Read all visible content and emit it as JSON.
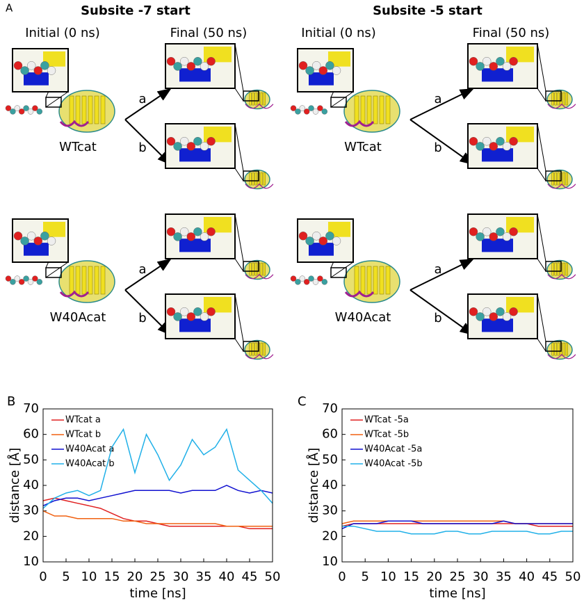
{
  "panel_a": {
    "label": "A",
    "groups": [
      {
        "title": "Subsite -7 start",
        "initial": "Initial (0 ns)",
        "final": "Final (50 ns)",
        "rows": [
          {
            "name": "WTcat",
            "branches": [
              "a",
              "b"
            ]
          },
          {
            "name": "W40Acat",
            "branches": [
              "a",
              "b"
            ]
          }
        ]
      },
      {
        "title": "Subsite -5 start",
        "initial": "Initial (0 ns)",
        "final": "Final (50 ns)",
        "rows": [
          {
            "name": "WTcat",
            "branches": [
              "a",
              "b"
            ]
          },
          {
            "name": "W40Acat",
            "branches": [
              "a",
              "b"
            ]
          }
        ]
      }
    ]
  },
  "chart_data": [
    {
      "type": "line",
      "panel_label": "B",
      "x_label": "time [ns]",
      "y_label": "distance [Å]",
      "x": [
        0,
        2.5,
        5,
        7.5,
        10,
        12.5,
        15,
        17.5,
        20,
        22.5,
        25,
        27.5,
        30,
        32.5,
        35,
        37.5,
        40,
        42.5,
        45,
        47.5,
        50
      ],
      "xlim": [
        0,
        50
      ],
      "xticks": [
        0,
        5,
        10,
        15,
        20,
        25,
        30,
        35,
        40,
        45,
        50
      ],
      "ylim": [
        10,
        70
      ],
      "yticks": [
        10,
        20,
        30,
        40,
        50,
        60,
        70
      ],
      "series": [
        {
          "name": "WTcat a",
          "color": "#e02020",
          "values": [
            34,
            35,
            34,
            33,
            32,
            31,
            29,
            27,
            26,
            26,
            25,
            24,
            24,
            24,
            24,
            24,
            24,
            24,
            23,
            23,
            23
          ]
        },
        {
          "name": "WTcat b",
          "color": "#f06010",
          "values": [
            30,
            28,
            28,
            27,
            27,
            27,
            27,
            26,
            26,
            25,
            25,
            25,
            25,
            25,
            25,
            25,
            24,
            24,
            24,
            24,
            24
          ]
        },
        {
          "name": "W40Acat a",
          "color": "#1010d0",
          "values": [
            32,
            34,
            35,
            35,
            34,
            35,
            36,
            37,
            38,
            38,
            38,
            38,
            37,
            38,
            38,
            38,
            40,
            38,
            37,
            38,
            37
          ]
        },
        {
          "name": "W40Acat b",
          "color": "#20b0e8",
          "values": [
            31,
            35,
            37,
            38,
            36,
            38,
            55,
            62,
            45,
            60,
            52,
            42,
            48,
            58,
            52,
            55,
            62,
            46,
            42,
            38,
            33
          ]
        }
      ]
    },
    {
      "type": "line",
      "panel_label": "C",
      "x_label": "time [ns]",
      "y_label": "distance [Å]",
      "x": [
        0,
        2.5,
        5,
        7.5,
        10,
        12.5,
        15,
        17.5,
        20,
        22.5,
        25,
        27.5,
        30,
        32.5,
        35,
        37.5,
        40,
        42.5,
        45,
        47.5,
        50
      ],
      "xlim": [
        0,
        50
      ],
      "xticks": [
        0,
        5,
        10,
        15,
        20,
        25,
        30,
        35,
        40,
        45,
        50
      ],
      "ylim": [
        10,
        70
      ],
      "yticks": [
        10,
        20,
        30,
        40,
        50,
        60,
        70
      ],
      "series": [
        {
          "name": "WTcat -5a",
          "color": "#e02020",
          "values": [
            24,
            25,
            25,
            25,
            25,
            25,
            25,
            25,
            25,
            25,
            25,
            25,
            25,
            25,
            25,
            25,
            25,
            24,
            24,
            24,
            24
          ]
        },
        {
          "name": "WTcat -5b",
          "color": "#f06010",
          "values": [
            25,
            26,
            26,
            26,
            26,
            26,
            26,
            26,
            26,
            26,
            26,
            26,
            26,
            26,
            26,
            25,
            25,
            25,
            25,
            25,
            25
          ]
        },
        {
          "name": "W40Acat -5a",
          "color": "#1010d0",
          "values": [
            23,
            25,
            25,
            25,
            26,
            26,
            26,
            25,
            25,
            25,
            25,
            25,
            25,
            25,
            26,
            25,
            25,
            25,
            25,
            25,
            25
          ]
        },
        {
          "name": "W40Acat -5b",
          "color": "#20b0e8",
          "values": [
            24,
            24,
            23,
            22,
            22,
            22,
            21,
            21,
            21,
            22,
            22,
            21,
            21,
            22,
            22,
            22,
            22,
            21,
            21,
            22,
            22
          ]
        }
      ]
    }
  ]
}
